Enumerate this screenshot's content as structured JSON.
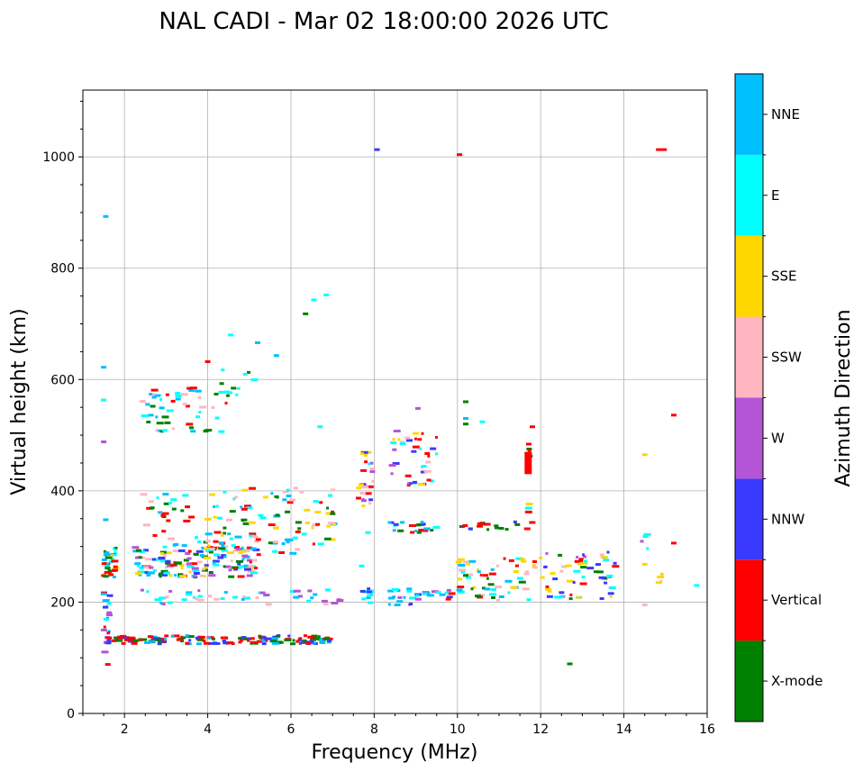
{
  "chart_data": {
    "type": "scatter",
    "title": "NAL CADI - Mar 02 18:00:00 2026 UTC",
    "xlabel": "Frequency (MHz)",
    "ylabel": "Virtual height (km)",
    "xlim": [
      1,
      16
    ],
    "ylim": [
      0,
      1120
    ],
    "xticks": [
      2,
      4,
      6,
      8,
      10,
      12,
      14,
      16
    ],
    "yticks": [
      0,
      200,
      400,
      600,
      800,
      1000
    ],
    "grid": true,
    "colorbar": {
      "label": "Azimuth Direction",
      "categories": [
        {
          "name": "X-mode",
          "color": "#008000"
        },
        {
          "name": "Vertical",
          "color": "#ff0000"
        },
        {
          "name": "NNW",
          "color": "#3a3aff"
        },
        {
          "name": "W",
          "color": "#b455d6"
        },
        {
          "name": "SSW",
          "color": "#ffb6c1"
        },
        {
          "name": "SSE",
          "color": "#ffd700"
        },
        {
          "name": "E",
          "color": "#00ffff"
        },
        {
          "name": "NNE",
          "color": "#00bfff"
        }
      ]
    },
    "isolated_points": [
      {
        "f": 1.55,
        "h": 893,
        "c": 7
      },
      {
        "f": 1.5,
        "h": 622,
        "c": 7
      },
      {
        "f": 1.5,
        "h": 563,
        "c": 6
      },
      {
        "f": 1.5,
        "h": 488,
        "c": 3
      },
      {
        "f": 1.55,
        "h": 348,
        "c": 7
      },
      {
        "f": 1.6,
        "h": 88,
        "c": 1
      },
      {
        "f": 8.07,
        "h": 1013,
        "c": 2
      },
      {
        "f": 10.05,
        "h": 1004,
        "c": 1
      },
      {
        "f": 14.9,
        "h": 1013,
        "c": 1
      },
      {
        "f": 6.55,
        "h": 743,
        "c": 6
      },
      {
        "f": 6.85,
        "h": 752,
        "c": 6
      },
      {
        "f": 6.35,
        "h": 718,
        "c": 0
      },
      {
        "f": 5.65,
        "h": 643,
        "c": 7
      },
      {
        "f": 5.2,
        "h": 666,
        "c": 7
      },
      {
        "f": 4.55,
        "h": 680,
        "c": 6
      },
      {
        "f": 4.0,
        "h": 632,
        "c": 1
      },
      {
        "f": 10.2,
        "h": 560,
        "c": 0
      },
      {
        "f": 10.2,
        "h": 530,
        "c": 7
      },
      {
        "f": 10.2,
        "h": 520,
        "c": 0
      },
      {
        "f": 10.6,
        "h": 524,
        "c": 6
      },
      {
        "f": 11.8,
        "h": 515,
        "c": 1
      },
      {
        "f": 15.2,
        "h": 536,
        "c": 1
      },
      {
        "f": 14.5,
        "h": 465,
        "c": 5
      },
      {
        "f": 15.2,
        "h": 306,
        "c": 1
      },
      {
        "f": 14.5,
        "h": 268,
        "c": 5
      },
      {
        "f": 14.5,
        "h": 195,
        "c": 4
      },
      {
        "f": 15.75,
        "h": 230,
        "c": 6
      },
      {
        "f": 12.7,
        "h": 89,
        "c": 0
      },
      {
        "f": 10.2,
        "h": 272,
        "c": 4
      },
      {
        "f": 10.2,
        "h": 248,
        "c": 0
      },
      {
        "f": 9.05,
        "h": 548,
        "c": 3
      },
      {
        "f": 7.85,
        "h": 325,
        "c": 6
      },
      {
        "f": 7.7,
        "h": 265,
        "c": 6
      },
      {
        "f": 6.7,
        "h": 515,
        "c": 6
      }
    ],
    "clusters": [
      {
        "f": [
          1.5,
          1.8
        ],
        "h": [
          245,
          300
        ],
        "n": 40,
        "colors": [
          7,
          6,
          5,
          1,
          0
        ]
      },
      {
        "f": [
          1.5,
          1.65
        ],
        "h": [
          110,
          220
        ],
        "n": 25,
        "colors": [
          2,
          7,
          3,
          1,
          6
        ]
      },
      {
        "f": [
          1.6,
          7.0
        ],
        "h": [
          125,
          140
        ],
        "n": 150,
        "colors": [
          0,
          1,
          2,
          7,
          0,
          1
        ]
      },
      {
        "f": [
          2.2,
          5.2
        ],
        "h": [
          245,
          300
        ],
        "n": 150,
        "colors": [
          1,
          6,
          7,
          4,
          5,
          0,
          2,
          3
        ]
      },
      {
        "f": [
          4.0,
          7.1
        ],
        "h": [
          285,
          405
        ],
        "n": 90,
        "colors": [
          7,
          6,
          0,
          1,
          5,
          4
        ]
      },
      {
        "f": [
          2.4,
          5.0
        ],
        "h": [
          300,
          400
        ],
        "n": 45,
        "colors": [
          7,
          6,
          0,
          1,
          4
        ]
      },
      {
        "f": [
          2.4,
          4.5
        ],
        "h": [
          500,
          585
        ],
        "n": 50,
        "colors": [
          1,
          0,
          6,
          7,
          4
        ]
      },
      {
        "f": [
          4.3,
          5.3
        ],
        "h": [
          570,
          620
        ],
        "n": 12,
        "colors": [
          0,
          6
        ]
      },
      {
        "f": [
          2.4,
          7.2
        ],
        "h": [
          196,
          222
        ],
        "n": 45,
        "colors": [
          4,
          6,
          7,
          3
        ]
      },
      {
        "f": [
          7.6,
          8.0
        ],
        "h": [
          370,
          470
        ],
        "n": 25,
        "colors": [
          5,
          3,
          2,
          4,
          6,
          1
        ]
      },
      {
        "f": [
          7.7,
          8.0
        ],
        "h": [
          192,
          230
        ],
        "n": 12,
        "colors": [
          7,
          6,
          2
        ]
      },
      {
        "f": [
          8.35,
          9.5
        ],
        "h": [
          405,
          510
        ],
        "n": 40,
        "colors": [
          3,
          6,
          4,
          2,
          5,
          1
        ]
      },
      {
        "f": [
          8.35,
          9.5
        ],
        "h": [
          325,
          345
        ],
        "n": 20,
        "colors": [
          1,
          6,
          0,
          2,
          7
        ]
      },
      {
        "f": [
          8.35,
          9.9
        ],
        "h": [
          195,
          225
        ],
        "n": 30,
        "colors": [
          6,
          7,
          1,
          3,
          2
        ]
      },
      {
        "f": [
          10.0,
          11.8
        ],
        "h": [
          330,
          345
        ],
        "n": 18,
        "colors": [
          1,
          2,
          0
        ]
      },
      {
        "f": [
          10.0,
          11.9
        ],
        "h": [
          200,
          280
        ],
        "n": 55,
        "colors": [
          0,
          1,
          4,
          5,
          6,
          7
        ]
      },
      {
        "f": [
          12.0,
          13.8
        ],
        "h": [
          205,
          290
        ],
        "n": 60,
        "colors": [
          0,
          1,
          4,
          5,
          6,
          3,
          2
        ]
      },
      {
        "f": [
          11.7,
          11.75
        ],
        "h": [
          360,
          382
        ],
        "n": 4,
        "colors": [
          5,
          1,
          6
        ]
      },
      {
        "f": [
          11.7,
          11.75
        ],
        "h": [
          450,
          490
        ],
        "n": 5,
        "colors": [
          0,
          1
        ]
      },
      {
        "f": [
          14.4,
          14.6
        ],
        "h": [
          295,
          355
        ],
        "n": 4,
        "colors": [
          5,
          3,
          6
        ]
      },
      {
        "f": [
          14.8,
          15.0
        ],
        "h": [
          232,
          260
        ],
        "n": 4,
        "colors": [
          4,
          5
        ]
      }
    ],
    "bars": [
      {
        "f": 11.7,
        "h0": 430,
        "h1": 470,
        "c": 1
      }
    ]
  }
}
